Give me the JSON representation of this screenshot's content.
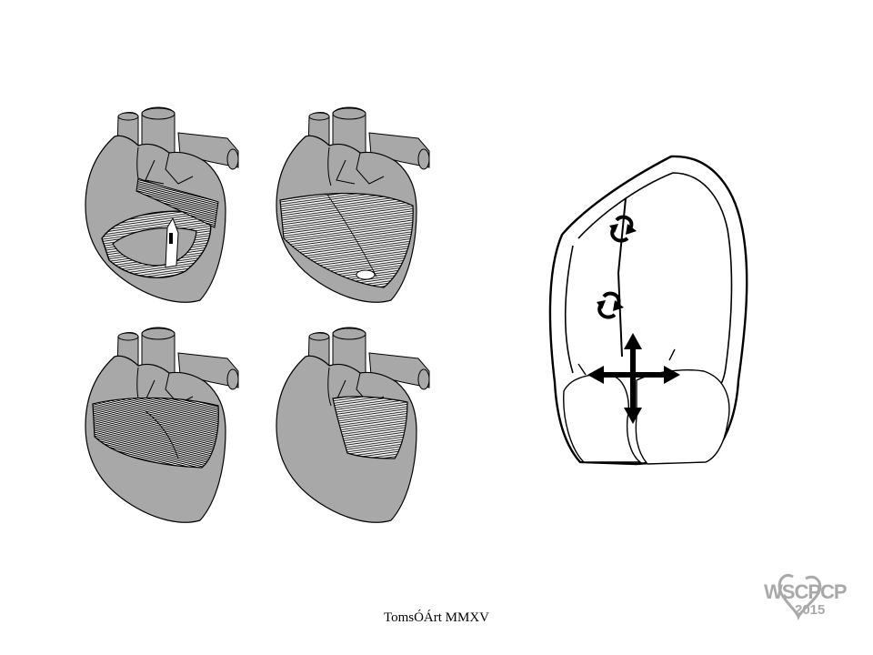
{
  "figure": {
    "panels": [
      {
        "name": "heart-basal-loop",
        "view": "cutaway"
      },
      {
        "name": "heart-descending-segment",
        "view": "cutaway"
      },
      {
        "name": "heart-ascending-segment",
        "view": "cutaway"
      },
      {
        "name": "heart-apical-band",
        "view": "cutaway"
      }
    ],
    "colors": {
      "heart_fill": "#a8a8a8",
      "outline": "#000000",
      "background": "#ffffff",
      "logo": "#a9a9a9"
    },
    "schematic": {
      "icons": [
        "rotation-arrow-icon",
        "rotation-arrow-icon",
        "four-way-arrow-icon"
      ]
    }
  },
  "caption": "TomsÓÁrt  MMXV",
  "logo": {
    "text": "WSCPCP",
    "year": "2015"
  }
}
